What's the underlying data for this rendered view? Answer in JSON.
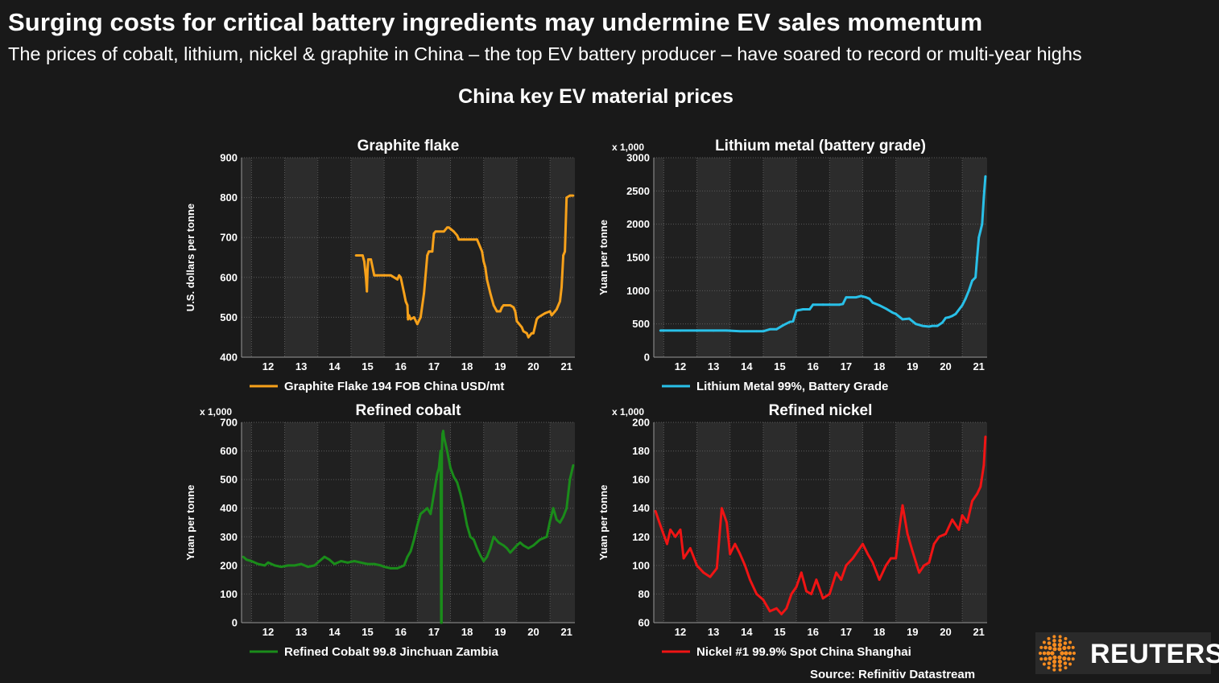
{
  "header": {
    "headline": "Surging costs for critical battery ingredients may undermine EV sales momentum",
    "subhead": "The prices of cobalt, lithium, nickel & graphite in China – the top EV battery producer – have soared to record or multi-year highs",
    "chart_title": "China key EV material prices"
  },
  "footer": {
    "source": "Source: Refinitiv Datastream",
    "logo_text": "REUTERS"
  },
  "colors": {
    "background": "#191919",
    "plot_band_dark": "#202020",
    "plot_band_light": "#2c2c2c",
    "grid": "#5a5a5a",
    "graphite": "#f7a11a",
    "lithium": "#29c0e8",
    "cobalt": "#1a8c1a",
    "nickel": "#f01414",
    "logo_orange": "#f68b1f"
  },
  "chart_data": [
    {
      "type": "line",
      "title": "Graphite flake",
      "ylabel": "U.S. dollars per tonne",
      "ylim": [
        400,
        900
      ],
      "yticks": [
        400,
        500,
        600,
        700,
        800,
        900
      ],
      "xlim": [
        2011.7,
        2021.75
      ],
      "xticks": [
        "12",
        "13",
        "14",
        "15",
        "16",
        "17",
        "18",
        "19",
        "20",
        "21"
      ],
      "grid": true,
      "legend": "bottom",
      "series": [
        {
          "name": "Graphite Flake 194 FOB China USD/mt",
          "color": "#f7a11a",
          "x": [
            2015.15,
            2015.35,
            2015.4,
            2015.45,
            2015.48,
            2015.5,
            2015.52,
            2015.55,
            2015.6,
            2015.7,
            2015.75,
            2015.8,
            2016.0,
            2016.2,
            2016.4,
            2016.45,
            2016.5,
            2016.6,
            2016.65,
            2016.7,
            2016.72,
            2016.75,
            2016.8,
            2016.9,
            2017.0,
            2017.1,
            2017.2,
            2017.3,
            2017.35,
            2017.45,
            2017.5,
            2017.55,
            2017.6,
            2017.8,
            2017.9,
            2017.95,
            2018.1,
            2018.2,
            2018.25,
            2018.4,
            2018.6,
            2018.8,
            2018.95,
            2019.0,
            2019.05,
            2019.1,
            2019.2,
            2019.3,
            2019.4,
            2019.5,
            2019.55,
            2019.6,
            2019.8,
            2019.9,
            2019.95,
            2020.0,
            2020.05,
            2020.15,
            2020.2,
            2020.3,
            2020.35,
            2020.45,
            2020.5,
            2020.6,
            2020.65,
            2020.75,
            2020.85,
            2021.0,
            2021.05,
            2021.15,
            2021.2,
            2021.3,
            2021.35,
            2021.4,
            2021.45,
            2021.5,
            2021.6,
            2021.7
          ],
          "values": [
            655,
            655,
            640,
            600,
            565,
            620,
            645,
            645,
            645,
            605,
            605,
            605,
            605,
            605,
            595,
            605,
            600,
            560,
            540,
            530,
            495,
            505,
            495,
            500,
            483,
            500,
            560,
            655,
            665,
            665,
            710,
            715,
            715,
            715,
            725,
            725,
            715,
            705,
            695,
            695,
            695,
            695,
            665,
            640,
            625,
            595,
            560,
            530,
            515,
            515,
            525,
            530,
            530,
            525,
            515,
            490,
            485,
            475,
            465,
            460,
            450,
            460,
            460,
            495,
            500,
            505,
            510,
            515,
            505,
            515,
            520,
            540,
            575,
            655,
            665,
            800,
            805,
            805
          ]
        }
      ]
    },
    {
      "type": "line",
      "title": "Lithium metal (battery grade)",
      "ylabel": "Yuan per tonne",
      "yunit": "x 1,000",
      "ylim": [
        0,
        3000
      ],
      "yticks": [
        0,
        500,
        1000,
        1500,
        2000,
        2500,
        3000
      ],
      "xlim": [
        2011.7,
        2021.75
      ],
      "xticks": [
        "12",
        "13",
        "14",
        "15",
        "16",
        "17",
        "18",
        "19",
        "20",
        "21"
      ],
      "grid": true,
      "legend": "bottom",
      "series": [
        {
          "name": "Lithium Metal 99%, Battery Grade",
          "color": "#29c0e8",
          "x": [
            2011.9,
            2012.5,
            2013.0,
            2013.5,
            2013.9,
            2014.3,
            2014.8,
            2015.0,
            2015.2,
            2015.4,
            2015.5,
            2015.6,
            2015.8,
            2015.9,
            2016.0,
            2016.2,
            2016.4,
            2016.5,
            2016.8,
            2017.0,
            2017.3,
            2017.4,
            2017.5,
            2017.8,
            2017.95,
            2018.1,
            2018.2,
            2018.3,
            2018.5,
            2018.7,
            2018.9,
            2019.0,
            2019.2,
            2019.4,
            2019.6,
            2019.8,
            2020.0,
            2020.1,
            2020.25,
            2020.4,
            2020.5,
            2020.6,
            2020.7,
            2020.8,
            2021.0,
            2021.1,
            2021.2,
            2021.3,
            2021.4,
            2021.45,
            2021.5,
            2021.55,
            2021.6,
            2021.65,
            2021.7
          ],
          "values": [
            400,
            400,
            400,
            400,
            400,
            390,
            390,
            390,
            420,
            420,
            450,
            480,
            530,
            540,
            700,
            720,
            720,
            790,
            790,
            790,
            790,
            800,
            900,
            900,
            920,
            900,
            880,
            820,
            780,
            730,
            670,
            650,
            570,
            580,
            500,
            470,
            460,
            470,
            470,
            520,
            590,
            600,
            620,
            650,
            780,
            880,
            1000,
            1150,
            1200,
            1500,
            1800,
            1900,
            2000,
            2400,
            2720
          ]
        }
      ]
    },
    {
      "type": "line",
      "title": "Refined cobalt",
      "ylabel": "Yuan per tonne",
      "yunit": "x 1,000",
      "ylim": [
        0,
        700
      ],
      "yticks": [
        0,
        100,
        200,
        300,
        400,
        500,
        600,
        700
      ],
      "xlim": [
        2011.7,
        2021.75
      ],
      "xticks": [
        "12",
        "13",
        "14",
        "15",
        "16",
        "17",
        "18",
        "19",
        "20",
        "21"
      ],
      "grid": true,
      "legend": "bottom",
      "series": [
        {
          "name": "Refined Cobalt 99.8 Jinchuan Zambia",
          "color": "#1a8c1a",
          "x": [
            2011.75,
            2011.85,
            2012.0,
            2012.2,
            2012.4,
            2012.5,
            2012.7,
            2012.9,
            2013.1,
            2013.3,
            2013.5,
            2013.7,
            2013.9,
            2014.0,
            2014.1,
            2014.2,
            2014.35,
            2014.5,
            2014.7,
            2014.9,
            2015.1,
            2015.3,
            2015.5,
            2015.7,
            2015.9,
            2016.0,
            2016.2,
            2016.4,
            2016.6,
            2016.7,
            2016.8,
            2016.9,
            2017.0,
            2017.1,
            2017.2,
            2017.3,
            2017.4,
            2017.5,
            2017.6,
            2017.65,
            2017.7,
            2017.72,
            2017.73,
            2017.74,
            2017.76,
            2017.78,
            2017.8,
            2017.9,
            2018.0,
            2018.1,
            2018.2,
            2018.3,
            2018.4,
            2018.5,
            2018.6,
            2018.7,
            2018.8,
            2018.9,
            2019.0,
            2019.1,
            2019.2,
            2019.3,
            2019.45,
            2019.6,
            2019.7,
            2019.8,
            2020.0,
            2020.1,
            2020.2,
            2020.35,
            2020.5,
            2020.6,
            2020.7,
            2020.9,
            2021.0,
            2021.1,
            2021.2,
            2021.3,
            2021.4,
            2021.5,
            2021.6,
            2021.7
          ],
          "values": [
            230,
            220,
            215,
            205,
            200,
            210,
            200,
            195,
            200,
            200,
            205,
            195,
            200,
            210,
            220,
            230,
            220,
            205,
            215,
            210,
            215,
            210,
            205,
            205,
            200,
            195,
            190,
            190,
            200,
            230,
            250,
            290,
            340,
            380,
            390,
            400,
            380,
            450,
            520,
            540,
            600,
            0,
            0,
            600,
            660,
            670,
            650,
            600,
            540,
            510,
            490,
            450,
            400,
            340,
            300,
            290,
            260,
            235,
            215,
            230,
            260,
            300,
            280,
            270,
            260,
            245,
            270,
            280,
            270,
            260,
            270,
            280,
            290,
            300,
            355,
            400,
            360,
            350,
            370,
            400,
            500,
            550
          ]
        }
      ]
    },
    {
      "type": "line",
      "title": "Refined nickel",
      "ylabel": "Yuan per tonne",
      "yunit": "x 1,000",
      "ylim": [
        60,
        200
      ],
      "yticks": [
        60,
        80,
        100,
        120,
        140,
        160,
        180,
        200
      ],
      "xlim": [
        2011.7,
        2021.75
      ],
      "xticks": [
        "12",
        "13",
        "14",
        "15",
        "16",
        "17",
        "18",
        "19",
        "20",
        "21"
      ],
      "grid": true,
      "legend": "bottom",
      "series": [
        {
          "name": "Nickel #1 99.9% Spot China Shanghai",
          "color": "#f01414",
          "x": [
            2011.75,
            2011.9,
            2012.1,
            2012.2,
            2012.35,
            2012.5,
            2012.6,
            2012.8,
            2013.0,
            2013.2,
            2013.4,
            2013.6,
            2013.75,
            2013.9,
            2014.0,
            2014.15,
            2014.3,
            2014.45,
            2014.6,
            2014.8,
            2015.0,
            2015.2,
            2015.4,
            2015.55,
            2015.7,
            2015.85,
            2016.0,
            2016.15,
            2016.3,
            2016.45,
            2016.6,
            2016.8,
            2017.0,
            2017.2,
            2017.35,
            2017.5,
            2017.7,
            2017.85,
            2018.0,
            2018.15,
            2018.3,
            2018.5,
            2018.7,
            2018.85,
            2019.0,
            2019.1,
            2019.2,
            2019.35,
            2019.5,
            2019.7,
            2019.85,
            2020.0,
            2020.15,
            2020.3,
            2020.5,
            2020.7,
            2020.9,
            2021.0,
            2021.15,
            2021.3,
            2021.45,
            2021.55,
            2021.65,
            2021.7
          ],
          "values": [
            138,
            128,
            115,
            125,
            120,
            125,
            105,
            112,
            100,
            95,
            92,
            98,
            140,
            130,
            108,
            115,
            108,
            100,
            90,
            80,
            76,
            68,
            70,
            66,
            70,
            80,
            85,
            95,
            82,
            80,
            90,
            77,
            80,
            95,
            90,
            100,
            105,
            110,
            115,
            108,
            102,
            90,
            100,
            105,
            105,
            125,
            142,
            122,
            110,
            95,
            100,
            102,
            115,
            120,
            122,
            132,
            125,
            135,
            130,
            145,
            150,
            155,
            170,
            190
          ]
        }
      ]
    }
  ]
}
